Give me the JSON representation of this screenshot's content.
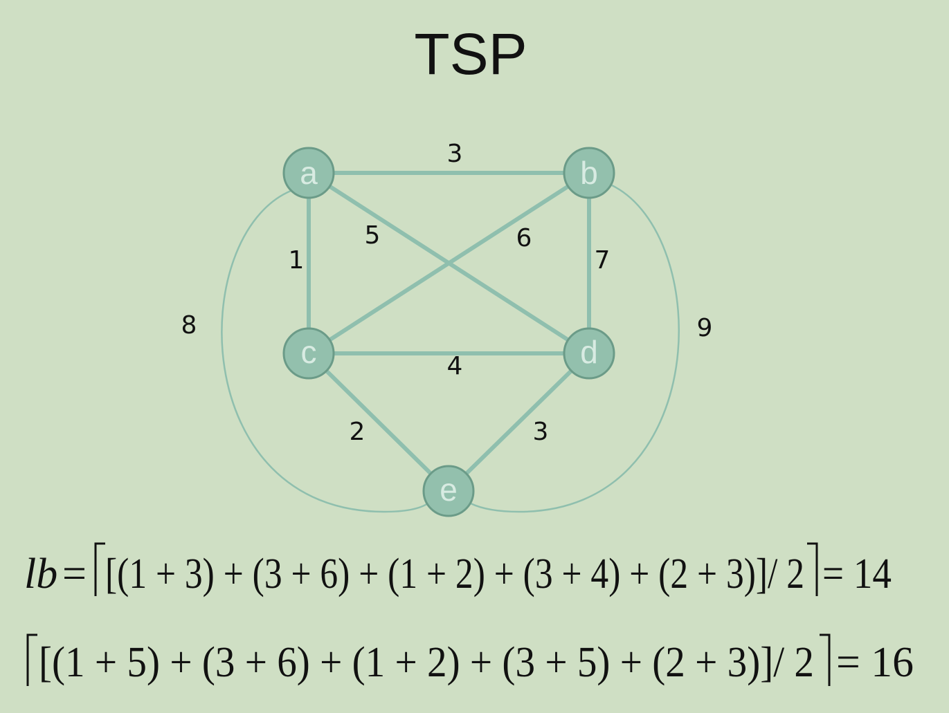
{
  "title": "TSP",
  "nodes": [
    {
      "label": "a"
    },
    {
      "label": "b"
    },
    {
      "label": "c"
    },
    {
      "label": "d"
    },
    {
      "label": "e"
    }
  ],
  "edges": [
    {
      "from": "a",
      "to": "b",
      "weight": "3"
    },
    {
      "from": "a",
      "to": "c",
      "weight": "1"
    },
    {
      "from": "a",
      "to": "d",
      "weight": "5"
    },
    {
      "from": "b",
      "to": "c",
      "weight": "6"
    },
    {
      "from": "b",
      "to": "d",
      "weight": "7"
    },
    {
      "from": "c",
      "to": "d",
      "weight": "4"
    },
    {
      "from": "c",
      "to": "e",
      "weight": "2"
    },
    {
      "from": "d",
      "to": "e",
      "weight": "3"
    },
    {
      "from": "a",
      "to": "e",
      "weight": "8"
    },
    {
      "from": "b",
      "to": "e",
      "weight": "9"
    }
  ],
  "formulas": [
    {
      "lhs": "lb",
      "relation": "=",
      "body": "[(1 + 3) + (3 + 6) + (1 + 2) + (3 + 4) + (2 + 3)]/ 2",
      "result": "= 14"
    },
    {
      "body": "[(1 + 5) + (3 + 6) + (1 + 2) + (3 + 5) + (2 + 3)]/ 2",
      "result": "= 16"
    }
  ]
}
